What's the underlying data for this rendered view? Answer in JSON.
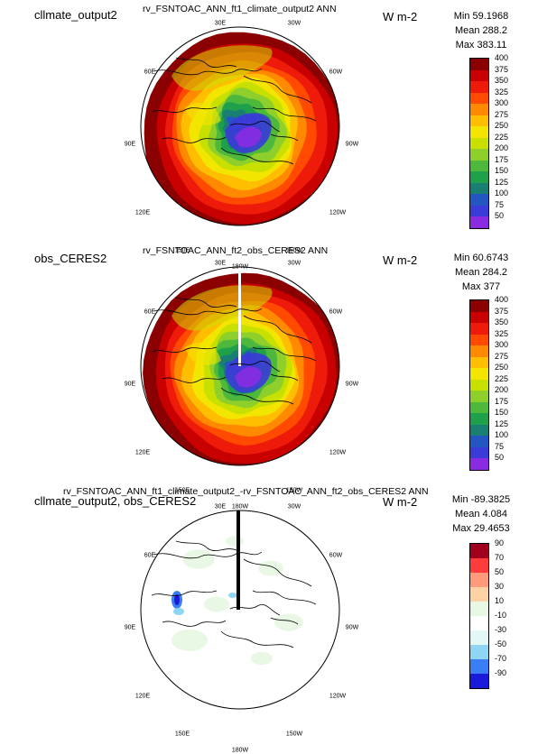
{
  "panels": [
    {
      "case_label": "cllmate_output2",
      "title": "rv_FSNTOAC_ANN_ft1_climate_output2  ANN",
      "units": "W m-2",
      "stats": {
        "min": "Min 59.1968",
        "mean": "Mean 288.2",
        "max": "Max 383.11"
      },
      "colorbar": {
        "labels": [
          "400",
          "375",
          "350",
          "325",
          "300",
          "275",
          "250",
          "225",
          "200",
          "175",
          "150",
          "125",
          "100",
          "75",
          "50"
        ],
        "colors": [
          "#8b0000",
          "#c80000",
          "#ee1b0b",
          "#ff4a00",
          "#ff8a00",
          "#ffbf00",
          "#f2e600",
          "#c8e000",
          "#8fcf2c",
          "#4db83c",
          "#1fa04a",
          "#1a7f73",
          "#2356c0",
          "#3b3bd8",
          "#8a2be2"
        ]
      },
      "field": "climate"
    },
    {
      "case_label": "obs_CERES2",
      "title": "rv_FSNTOAC_ANN_ft2_obs_CERES2  ANN",
      "units": "W m-2",
      "stats": {
        "min": "Min 60.6743",
        "mean": "Mean 284.2",
        "max": "Max 377"
      },
      "colorbar": {
        "labels": [
          "400",
          "375",
          "350",
          "325",
          "300",
          "275",
          "250",
          "225",
          "200",
          "175",
          "150",
          "125",
          "100",
          "75",
          "50"
        ],
        "colors": [
          "#8b0000",
          "#c80000",
          "#ee1b0b",
          "#ff4a00",
          "#ff8a00",
          "#ffbf00",
          "#f2e600",
          "#c8e000",
          "#8fcf2c",
          "#4db83c",
          "#1fa04a",
          "#1a7f73",
          "#2356c0",
          "#3b3bd8",
          "#8a2be2"
        ]
      },
      "field": "obs"
    },
    {
      "case_label": "cllmate_output2, obs_CERES2",
      "title": "rv_FSNTOAC_ANN_ft1_climate_output2_-rv_FSNTOAC_ANN_ft2_obs_CERES2  ANN",
      "units": "W m-2",
      "stats": {
        "min": "Min -89.3825",
        "mean": "Mean 4.084",
        "max": "Max 29.4653"
      },
      "colorbar": {
        "labels": [
          "90",
          "70",
          "50",
          "30",
          "10",
          "-10",
          "-30",
          "-50",
          "-70",
          "-90"
        ],
        "colors": [
          "#a0001e",
          "#ff3c3c",
          "#ff9a7a",
          "#ffd2a6",
          "#e9f8e4",
          "#ffffff",
          "#e4f7f7",
          "#8fd6f5",
          "#3a7ef5",
          "#1a1ad8"
        ]
      },
      "field": "diff"
    }
  ],
  "lon_labels": {
    "top_left": "30E",
    "top_right": "30W",
    "upper_left": "60E",
    "upper_right": "60W",
    "left": "90E",
    "right": "90W",
    "lower_left": "120E",
    "lower_right": "120W",
    "bottom_left": "150E",
    "bottom_right": "150W",
    "bottom": "180W"
  }
}
